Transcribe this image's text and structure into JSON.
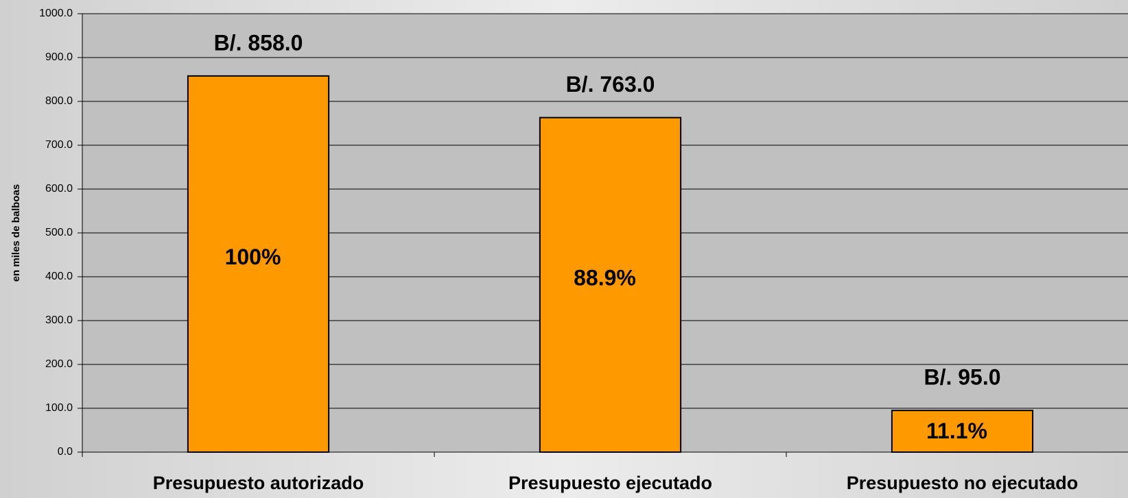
{
  "chart_data": {
    "type": "bar",
    "y_label": "en miles de balboas",
    "categories": [
      "Presupuesto autorizado",
      "Presupuesto ejecutado",
      "Presupuesto no ejecutado"
    ],
    "values": [
      858,
      763,
      95
    ],
    "value_labels": [
      "B/. 858.0",
      "B/. 763.0",
      "B/. 95.0"
    ],
    "percent_labels": [
      "100%",
      "88.9%",
      "11.1%"
    ],
    "color": "#ff9900",
    "ylim": [
      0,
      1000
    ],
    "yticks": [
      {
        "value": 0,
        "label": "0.0"
      },
      {
        "value": 100,
        "label": "100.0"
      },
      {
        "value": 200,
        "label": "200.0"
      },
      {
        "value": 300,
        "label": "300.0"
      },
      {
        "value": 400,
        "label": "400.0"
      },
      {
        "value": 500,
        "label": "500.0"
      },
      {
        "value": 600,
        "label": "600.0"
      },
      {
        "value": 700,
        "label": "700.0"
      },
      {
        "value": 800,
        "label": "800.0"
      },
      {
        "value": 900,
        "label": "900.0"
      },
      {
        "value": 1000,
        "label": "1000.0"
      }
    ],
    "grid": true
  }
}
